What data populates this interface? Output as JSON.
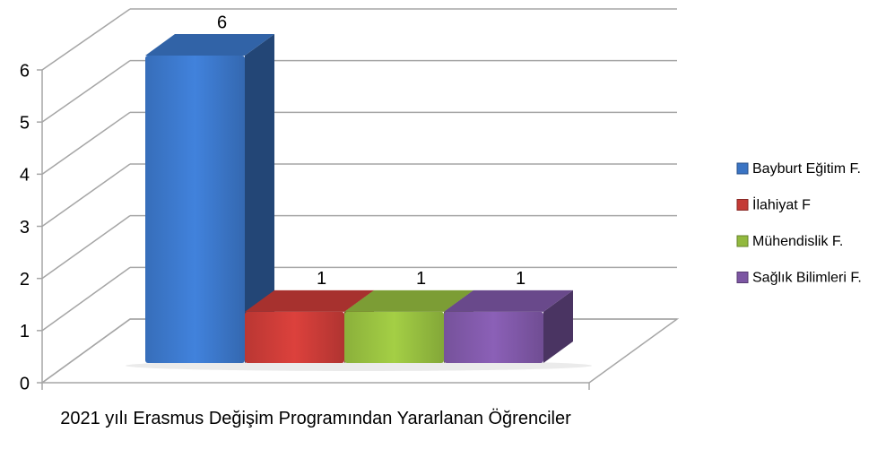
{
  "chart_data": {
    "type": "bar",
    "categories": [
      "2021 yılı Erasmus Değişim Programından Yararlanan Öğrenciler"
    ],
    "series": [
      {
        "name": "Bayburt Eğitim F.",
        "color": "#3a74c4",
        "values": [
          6
        ]
      },
      {
        "name": "İlahiyat F",
        "color": "#c43a36",
        "values": [
          1
        ]
      },
      {
        "name": "Mühendislik F.",
        "color": "#92b93e",
        "values": [
          1
        ]
      },
      {
        "name": "Sağlık Bilimleri F.",
        "color": "#7c56a3",
        "values": [
          1
        ]
      }
    ],
    "ylim": [
      0,
      6
    ],
    "yticks": [
      0,
      1,
      2,
      3,
      4,
      5,
      6
    ],
    "grid": true,
    "legend": "right"
  }
}
